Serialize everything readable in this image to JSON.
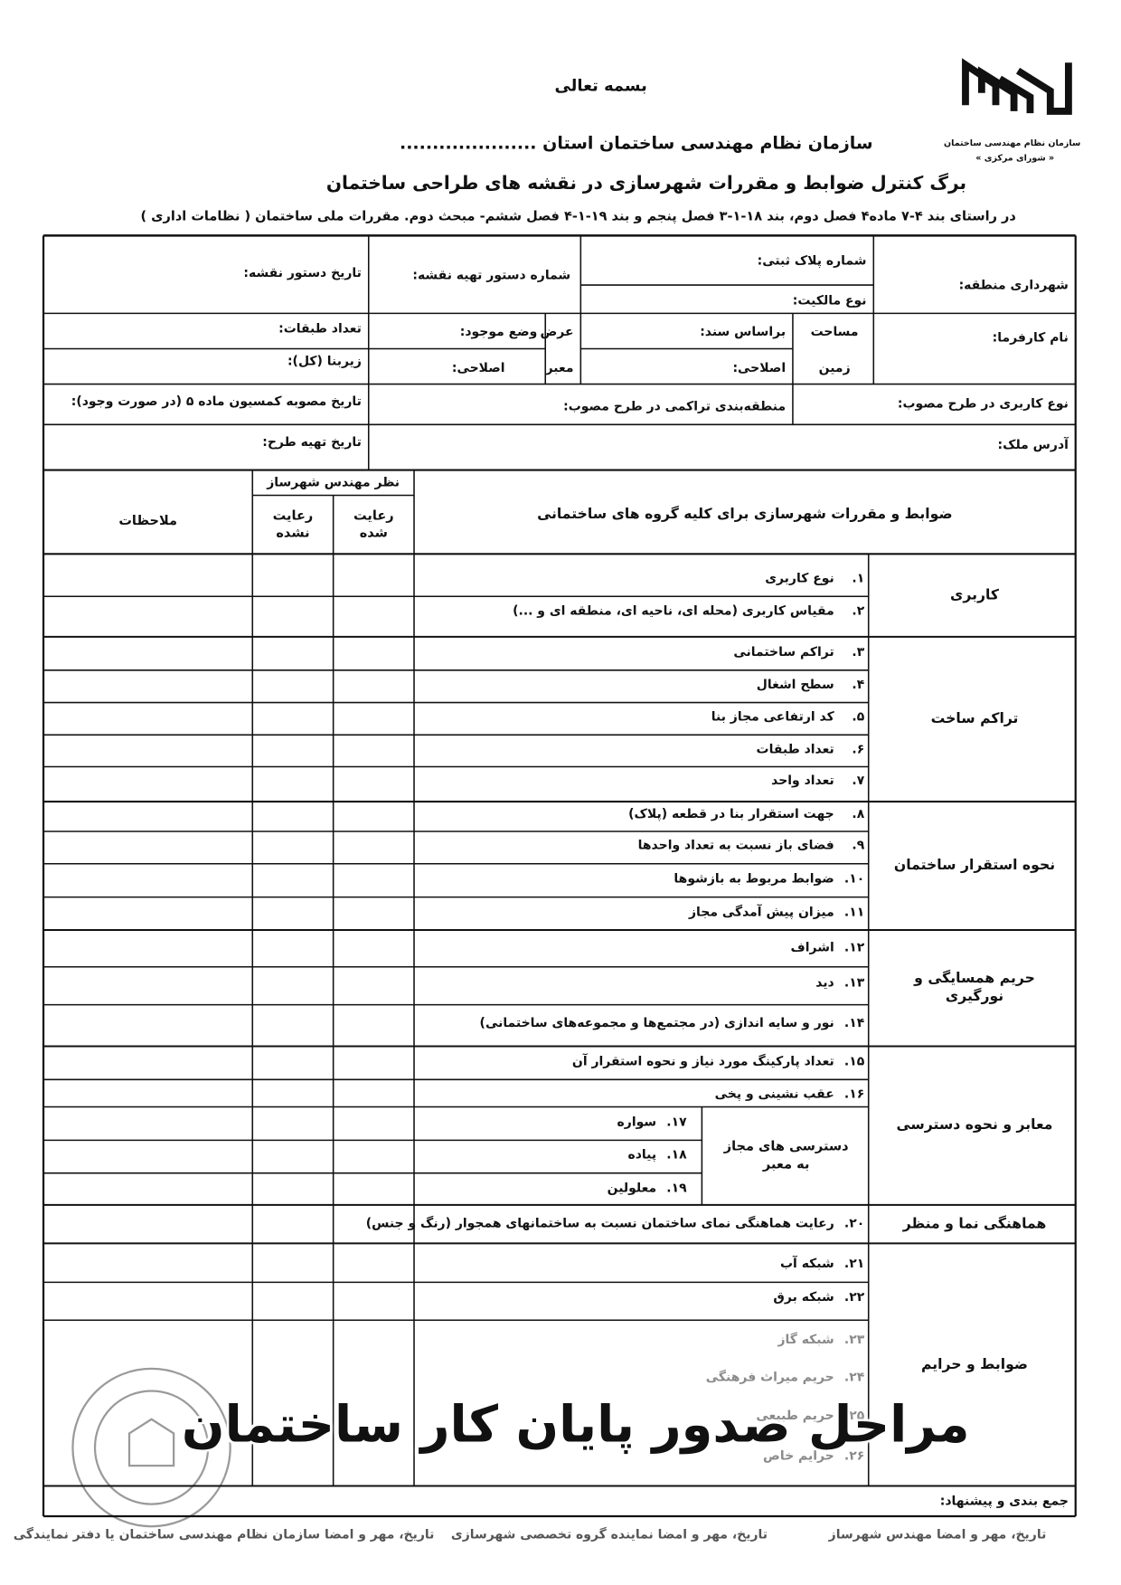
{
  "header": {
    "basmala": "بسمه تعالی",
    "organization": "سازمان نظام مهندسی ساختمان استان .....................",
    "title": "برگ کنترل ضوابط و مقررات شهرسازی در نقشه های طراحی ساختمان",
    "subtitle": "در راستای بند ۴-۷ ماده۴ فصل دوم، بند ۱۸-۱-۳ فصل پنجم و بند ۱۹-۱-۴ فصل ششم- مبحث دوم. مقررات ملی ساختمان ( نظامات اداری )"
  },
  "logo": {
    "name": "سازمان نظام مهندسی ساختمان",
    "council": "« شورای مرکزی »"
  },
  "info": [
    "شهرداری منطقه:",
    "شماره پلاک ثبتی:",
    "نوع مالکیت:",
    "شماره دستور تهیه نقشه:",
    "تاریخ دستور نقشه:",
    "نام کارفرما:",
    "مساحت",
    "زمین",
    "براساس سند:",
    "اصلاحی:",
    "عرض",
    "معبر",
    "وضع موجود:",
    "اصلاحی:",
    "تعداد طبقات:",
    "زیربنا (کل):",
    "نوع کاربری در طرح مصوب:",
    "منطقه‌بندی تراکمی در طرح مصوب:",
    "تاریخ مصوبه کمسیون ماده ۵ (در صورت وجود):",
    "آدرس ملک:",
    "تاریخ تهیه طرح:"
  ],
  "table": {
    "rules_heading": "ضوابط و مقررات شهرسازی برای کلیه گروه های ساختمانی",
    "reviewer": "نظر مهندس شهرساز",
    "complied": "رعایت شده",
    "not_complied": "رعایت نشده",
    "remarks": "ملاحظات",
    "groups": [
      {
        "name": "کاربری",
        "items": [
          {
            "number": "۱.",
            "text": "نوع کاربری"
          },
          {
            "number": "۲.",
            "text": "مقیاس کاربری (محله ای، ناحیه ای، منطقه ای و ...)"
          }
        ]
      },
      {
        "name": "تراکم ساخت",
        "items": [
          {
            "number": "۳.",
            "text": "تراکم ساختمانی"
          },
          {
            "number": "۴.",
            "text": "سطح اشغال"
          },
          {
            "number": "۵.",
            "text": "کد ارتفاعی مجاز بنا"
          },
          {
            "number": "۶.",
            "text": "تعداد طبقات"
          },
          {
            "number": "۷.",
            "text": "تعداد واحد"
          }
        ]
      },
      {
        "name": "نحوه استقرار ساختمان",
        "items": [
          {
            "number": "۸.",
            "text": "جهت استقرار بنا در قطعه (پلاک)"
          },
          {
            "number": "۹.",
            "text": "فضای باز نسبت به تعداد واحدها"
          },
          {
            "number": "۱۰.",
            "text": "ضوابط مربوط به بازشوها"
          },
          {
            "number": "۱۱.",
            "text": "میزان پیش آمدگی مجاز"
          }
        ]
      },
      {
        "name": "حریم همسایگی و نورگیری",
        "items": [
          {
            "number": "۱۲.",
            "text": "اشراف"
          },
          {
            "number": "۱۳.",
            "text": "دید"
          },
          {
            "number": "۱۴.",
            "text": "نور و سایه اندازی (در مجتمع‌ها و مجموعه‌های ساختمانی)"
          }
        ]
      },
      {
        "name": "معابر و نحوه دسترسی",
        "items": [
          {
            "number": "۱۵.",
            "text": "تعداد پارکینگ مورد نیاز و نحوه استقرار آن"
          },
          {
            "number": "۱۶.",
            "text": "عقب نشینی و پخی"
          }
        ],
        "subgroup": {
          "label": "دسترسی های مجاز به معبر",
          "items": [
            {
              "number": "۱۷.",
              "text": "سواره"
            },
            {
              "number": "۱۸.",
              "text": "پیاده"
            },
            {
              "number": "۱۹.",
              "text": "معلولین"
            }
          ]
        }
      },
      {
        "name": "هماهنگی نما و منظر",
        "items": [
          {
            "number": "۲۰.",
            "text": "رعایت هماهنگی نمای ساختمان نسبت به ساختمانهای همجوار (رنگ و جنس)"
          }
        ]
      },
      {
        "name": "ضوابط و حرایم",
        "items": [
          {
            "number": "۲۱.",
            "text": "شبکه آب"
          },
          {
            "number": "۲۲.",
            "text": "شبکه برق"
          },
          {
            "number": "۲۳.",
            "text": "شبکه گاز"
          },
          {
            "number": "۲۴.",
            "text": "حریم میراث فرهنگی"
          },
          {
            "number": "۲۵.",
            "text": "حریم طبیعی"
          },
          {
            "number": "۲۶.",
            "text": "حرایم خاص"
          }
        ]
      }
    ]
  },
  "summary": "جمع بندی و پیشنهاد:",
  "signatures": [
    "تاریخ، مهر و امضا مهندس شهرساز",
    "تاریخ، مهر و امضا نماینده گروه تخصصی شهرسازی",
    "تاریخ، مهر و امضا سازمان نظام مهندسی ساختمان یا دفتر نمایندگی"
  ],
  "overlay": "مراحل صدور پایان کار ساختمان"
}
